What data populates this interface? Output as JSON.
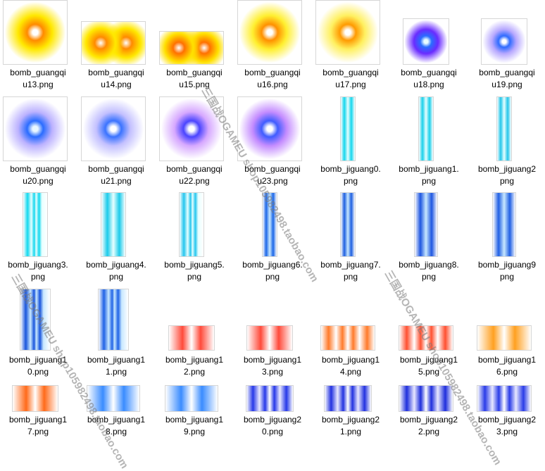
{
  "files": [
    {
      "line1": "bomb_guangqi",
      "line2": "u13.png",
      "kind": "glow",
      "c1": "#ffffff",
      "c2": "#ff8a00",
      "c3": "#ffe800"
    },
    {
      "line1": "bomb_guangqi",
      "line2": "u14.png",
      "kind": "double",
      "c1": "#ffffff",
      "c2": "#ff8a00",
      "c3": "#ffe800"
    },
    {
      "line1": "bomb_guangqi",
      "line2": "u15.png",
      "kind": "double",
      "c1": "#ffffff",
      "c2": "#ff7000",
      "c3": "#ffe000"
    },
    {
      "line1": "bomb_guangqi",
      "line2": "u16.png",
      "kind": "glow",
      "c1": "#ffffff",
      "c2": "#ff9000",
      "c3": "#ffef30"
    },
    {
      "line1": "bomb_guangqi",
      "line2": "u17.png",
      "kind": "glow",
      "c1": "#ffffff",
      "c2": "#ff9a00",
      "c3": "#fff060"
    },
    {
      "line1": "bomb_guangqi",
      "line2": "u18.png",
      "kind": "glow",
      "c1": "#e8fcff",
      "c2": "#2a6cff",
      "c3": "#6a2cff"
    },
    {
      "line1": "bomb_guangqi",
      "line2": "u19.png",
      "kind": "glow",
      "c1": "#ffffff",
      "c2": "#2f6bff",
      "c3": "#b7a8ff"
    },
    {
      "line1": "bomb_guangqi",
      "line2": "u20.png",
      "kind": "glow",
      "c1": "#e8f6ff",
      "c2": "#2a6cff",
      "c3": "#bcb2ff"
    },
    {
      "line1": "bomb_guangqi",
      "line2": "u21.png",
      "kind": "glow",
      "c1": "#ffffff",
      "c2": "#3a73ff",
      "c3": "#c3c0ff"
    },
    {
      "line1": "bomb_guangqi",
      "line2": "u22.png",
      "kind": "glow",
      "c1": "#ffffff",
      "c2": "#4a44ff",
      "c3": "#d6a8ff"
    },
    {
      "line1": "bomb_guangqi",
      "line2": "u23.png",
      "kind": "glow",
      "c1": "#ffffff",
      "c2": "#3f5cff",
      "c3": "#c48cff"
    },
    {
      "line1": "bomb_jiguang0.",
      "line2": "png",
      "kind": "beam",
      "c1": "#e8ffff",
      "c2": "#14d6ec"
    },
    {
      "line1": "bomb_jiguang1.",
      "line2": "png",
      "kind": "beam",
      "c1": "#e8ffff",
      "c2": "#19d0ea"
    },
    {
      "line1": "bomb_jiguang2",
      "line2": "png",
      "kind": "beam",
      "c1": "#e8ffff",
      "c2": "#22c6ea"
    },
    {
      "line1": "bomb_jiguang3.",
      "line2": "png",
      "kind": "beam2",
      "c1": "#e8ffff",
      "c2": "#12d8ee"
    },
    {
      "line1": "bomb_jiguang4.",
      "line2": "png",
      "kind": "beam",
      "c1": "#e8ffff",
      "c2": "#1ccbea"
    },
    {
      "line1": "bomb_jiguang5.",
      "line2": "png",
      "kind": "beam2",
      "c1": "#e8ffff",
      "c2": "#24c6ee"
    },
    {
      "line1": "bomb_jiguang6.",
      "line2": "png",
      "kind": "beam",
      "c1": "#c8e8ff",
      "c2": "#1a66e8"
    },
    {
      "line1": "bomb_jiguang7.",
      "line2": "png",
      "kind": "beam",
      "c1": "#c8e8ff",
      "c2": "#1d5fe0"
    },
    {
      "line1": "bomb_jiguang8.",
      "line2": "png",
      "kind": "beam",
      "c1": "#c8e8ff",
      "c2": "#1e56e0"
    },
    {
      "line1": "bomb_jiguang9",
      "line2": "png",
      "kind": "beam",
      "c1": "#c8e8ff",
      "c2": "#2060e4"
    },
    {
      "line1": "bomb_jiguang1",
      "line2": "0.png",
      "kind": "beam2",
      "c1": "#c8e8ff",
      "c2": "#1854dc"
    },
    {
      "line1": "bomb_jiguang1",
      "line2": "1.png",
      "kind": "beam2",
      "c1": "#c8e8ff",
      "c2": "#1f62e6"
    },
    {
      "line1": "bomb_jiguang1",
      "line2": "2.png",
      "kind": "hbeam",
      "c1": "#ffffff",
      "c2": "#ff4a3a"
    },
    {
      "line1": "bomb_jiguang1",
      "line2": "3.png",
      "kind": "hbeam",
      "c1": "#ffffff",
      "c2": "#ff4a3a"
    },
    {
      "line1": "bomb_jiguang1",
      "line2": "4.png",
      "kind": "hbeam2",
      "c1": "#ffffff",
      "c2": "#ff7a2a"
    },
    {
      "line1": "bomb_jiguang1",
      "line2": "5.png",
      "kind": "hbeam2",
      "c1": "#ffffff",
      "c2": "#ff5030"
    },
    {
      "line1": "bomb_jiguang1",
      "line2": "6.png",
      "kind": "hbeam",
      "c1": "#ffffff",
      "c2": "#ffa020"
    },
    {
      "line1": "bomb_jiguang1",
      "line2": "7.png",
      "kind": "hbeam",
      "c1": "#ffffff",
      "c2": "#ff6a1a"
    },
    {
      "line1": "bomb_jiguang1",
      "line2": "8.png",
      "kind": "hbeam",
      "c1": "#ffffff",
      "c2": "#3a8cff"
    },
    {
      "line1": "bomb_jiguang1",
      "line2": "9.png",
      "kind": "hbeam",
      "c1": "#ffffff",
      "c2": "#3a8cff"
    },
    {
      "line1": "bomb_jiguang2",
      "line2": "0.png",
      "kind": "hbeam2",
      "c1": "#e8e8ff",
      "c2": "#2638e8"
    },
    {
      "line1": "bomb_jiguang2",
      "line2": "1.png",
      "kind": "hbeam2",
      "c1": "#e8e8ff",
      "c2": "#2232e0"
    },
    {
      "line1": "bomb_jiguang2",
      "line2": "2.png",
      "kind": "hbeam2",
      "c1": "#e8e8ff",
      "c2": "#1e2edc"
    },
    {
      "line1": "bomb_jiguang2",
      "line2": "3.png",
      "kind": "hbeam2",
      "c1": "#e8e8ff",
      "c2": "#2a3ce8"
    }
  ],
  "watermark": {
    "text": "三国战OGAMEU shop105982498.taobao.com"
  }
}
